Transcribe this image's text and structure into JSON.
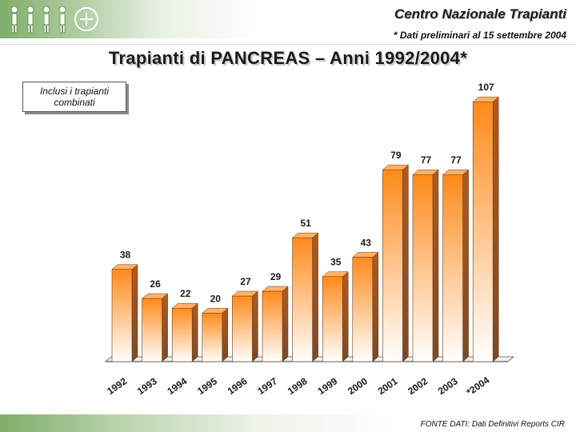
{
  "header": {
    "org_title": "Centro Nazionale Trapianti",
    "note": "* Dati preliminari al 15 settembre 2004"
  },
  "main_title": "Trapianti di PANCREAS – Anni 1992/2004*",
  "note_box": "Inclusi i trapianti combinati",
  "footer": {
    "source": "FONTE DATI: Dati Definitivi Reports CIR"
  },
  "colors": {
    "bar_top": "#ff8a1a",
    "bar_bottom": "#ffffff",
    "bar_side": "#b3591a",
    "bar_top_face": "#ffb266",
    "header_green": "#7fae6a"
  },
  "logo": {
    "icon": "people-logo-icon"
  },
  "chart_data": {
    "type": "bar",
    "categories": [
      "1992",
      "1993",
      "1994",
      "1995",
      "1996",
      "1997",
      "1998",
      "1999",
      "2000",
      "2001",
      "2002",
      "2003",
      "*2004"
    ],
    "values": [
      38,
      26,
      22,
      20,
      27,
      29,
      51,
      35,
      43,
      79,
      77,
      77,
      107
    ],
    "ylim": [
      0,
      110
    ],
    "grid": false,
    "three_d": true
  }
}
